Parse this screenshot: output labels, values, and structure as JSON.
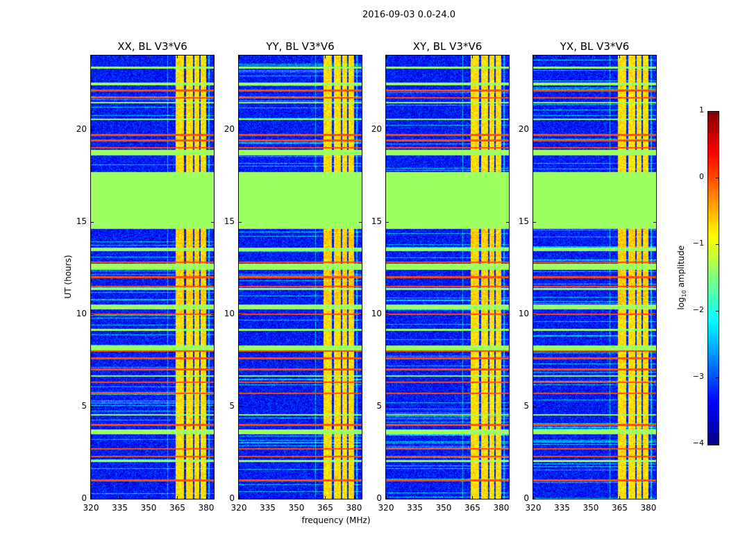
{
  "chart_data": {
    "type": "heatmap",
    "title": "2016-09-03 0.0-24.0",
    "xlabel": "frequency (MHz)",
    "ylabel": "UT (hours)",
    "xlim": [
      320,
      384
    ],
    "ylim": [
      0,
      24
    ],
    "xticks": [
      320,
      335,
      350,
      365,
      380
    ],
    "yticks": [
      0,
      5,
      10,
      15,
      20
    ],
    "panels": [
      {
        "title": "XX, BL V3*V6"
      },
      {
        "title": "YY, BL V3*V6"
      },
      {
        "title": "XY, BL V3*V6"
      },
      {
        "title": "YX, BL V3*V6"
      }
    ],
    "colorbar": {
      "label": "log",
      "label_sub": "10",
      "label_rest": " amplitude",
      "colormap": "jet",
      "range": [
        -4,
        1
      ],
      "ticks": [
        1,
        0,
        -1,
        -2,
        -3,
        -4
      ]
    },
    "background_level": -3.3,
    "flagged_value": -1.35,
    "flagged_hours": [
      [
        14.6,
        17.7
      ],
      [
        18.6,
        18.9
      ],
      [
        12.4,
        12.75
      ],
      [
        13.4,
        13.6
      ],
      [
        10.25,
        10.5
      ],
      [
        8.05,
        8.3
      ],
      [
        3.5,
        3.75
      ],
      [
        6.6,
        6.7
      ],
      [
        22.4,
        22.55
      ],
      [
        11.3,
        11.4
      ],
      [
        4.5,
        4.6
      ],
      [
        2.0,
        2.1
      ],
      [
        9.1,
        9.2
      ],
      [
        20.5,
        20.6
      ],
      [
        21.4,
        21.5
      ],
      [
        23.3,
        23.4
      ]
    ],
    "rfi_hours": [
      1.0,
      2.3,
      2.7,
      4.0,
      5.7,
      6.3,
      7.0,
      7.6,
      8.0,
      10.0,
      11.5,
      12.0,
      12.8,
      19.0,
      19.4,
      19.7,
      21.7,
      22.1
    ],
    "bright_bands_mhz": [
      [
        364,
        368.5
      ],
      [
        369.5,
        373
      ],
      [
        374,
        376.5
      ],
      [
        377,
        380
      ]
    ]
  }
}
